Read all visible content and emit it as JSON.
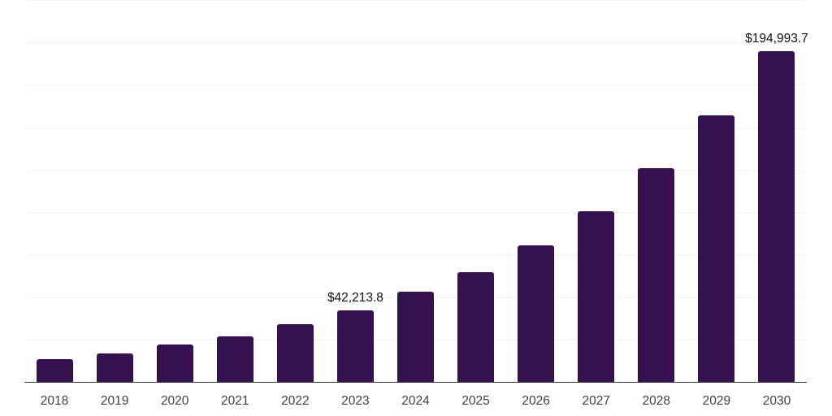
{
  "chart_data": {
    "type": "bar",
    "title": "",
    "xlabel": "",
    "ylabel": "",
    "categories": [
      "2018",
      "2019",
      "2020",
      "2021",
      "2022",
      "2023",
      "2024",
      "2025",
      "2026",
      "2027",
      "2028",
      "2029",
      "2030"
    ],
    "values": [
      13600,
      16800,
      21900,
      26900,
      33900,
      42213.8,
      53100,
      64800,
      80300,
      100700,
      126000,
      157000,
      194993.7
    ],
    "data_labels": [
      "",
      "",
      "",
      "",
      "",
      "$42,213.8",
      "",
      "",
      "",
      "",
      "",
      "",
      "$194,993.7"
    ],
    "ylim": [
      0,
      225000
    ],
    "gridline_step": 25000,
    "grid": true,
    "legend": false,
    "colors": {
      "bar": "#361150",
      "gridline": "#f0f0f0",
      "axis_line": "#333333",
      "tick_label": "#404040",
      "data_label": "#111111",
      "background": "#ffffff"
    }
  }
}
